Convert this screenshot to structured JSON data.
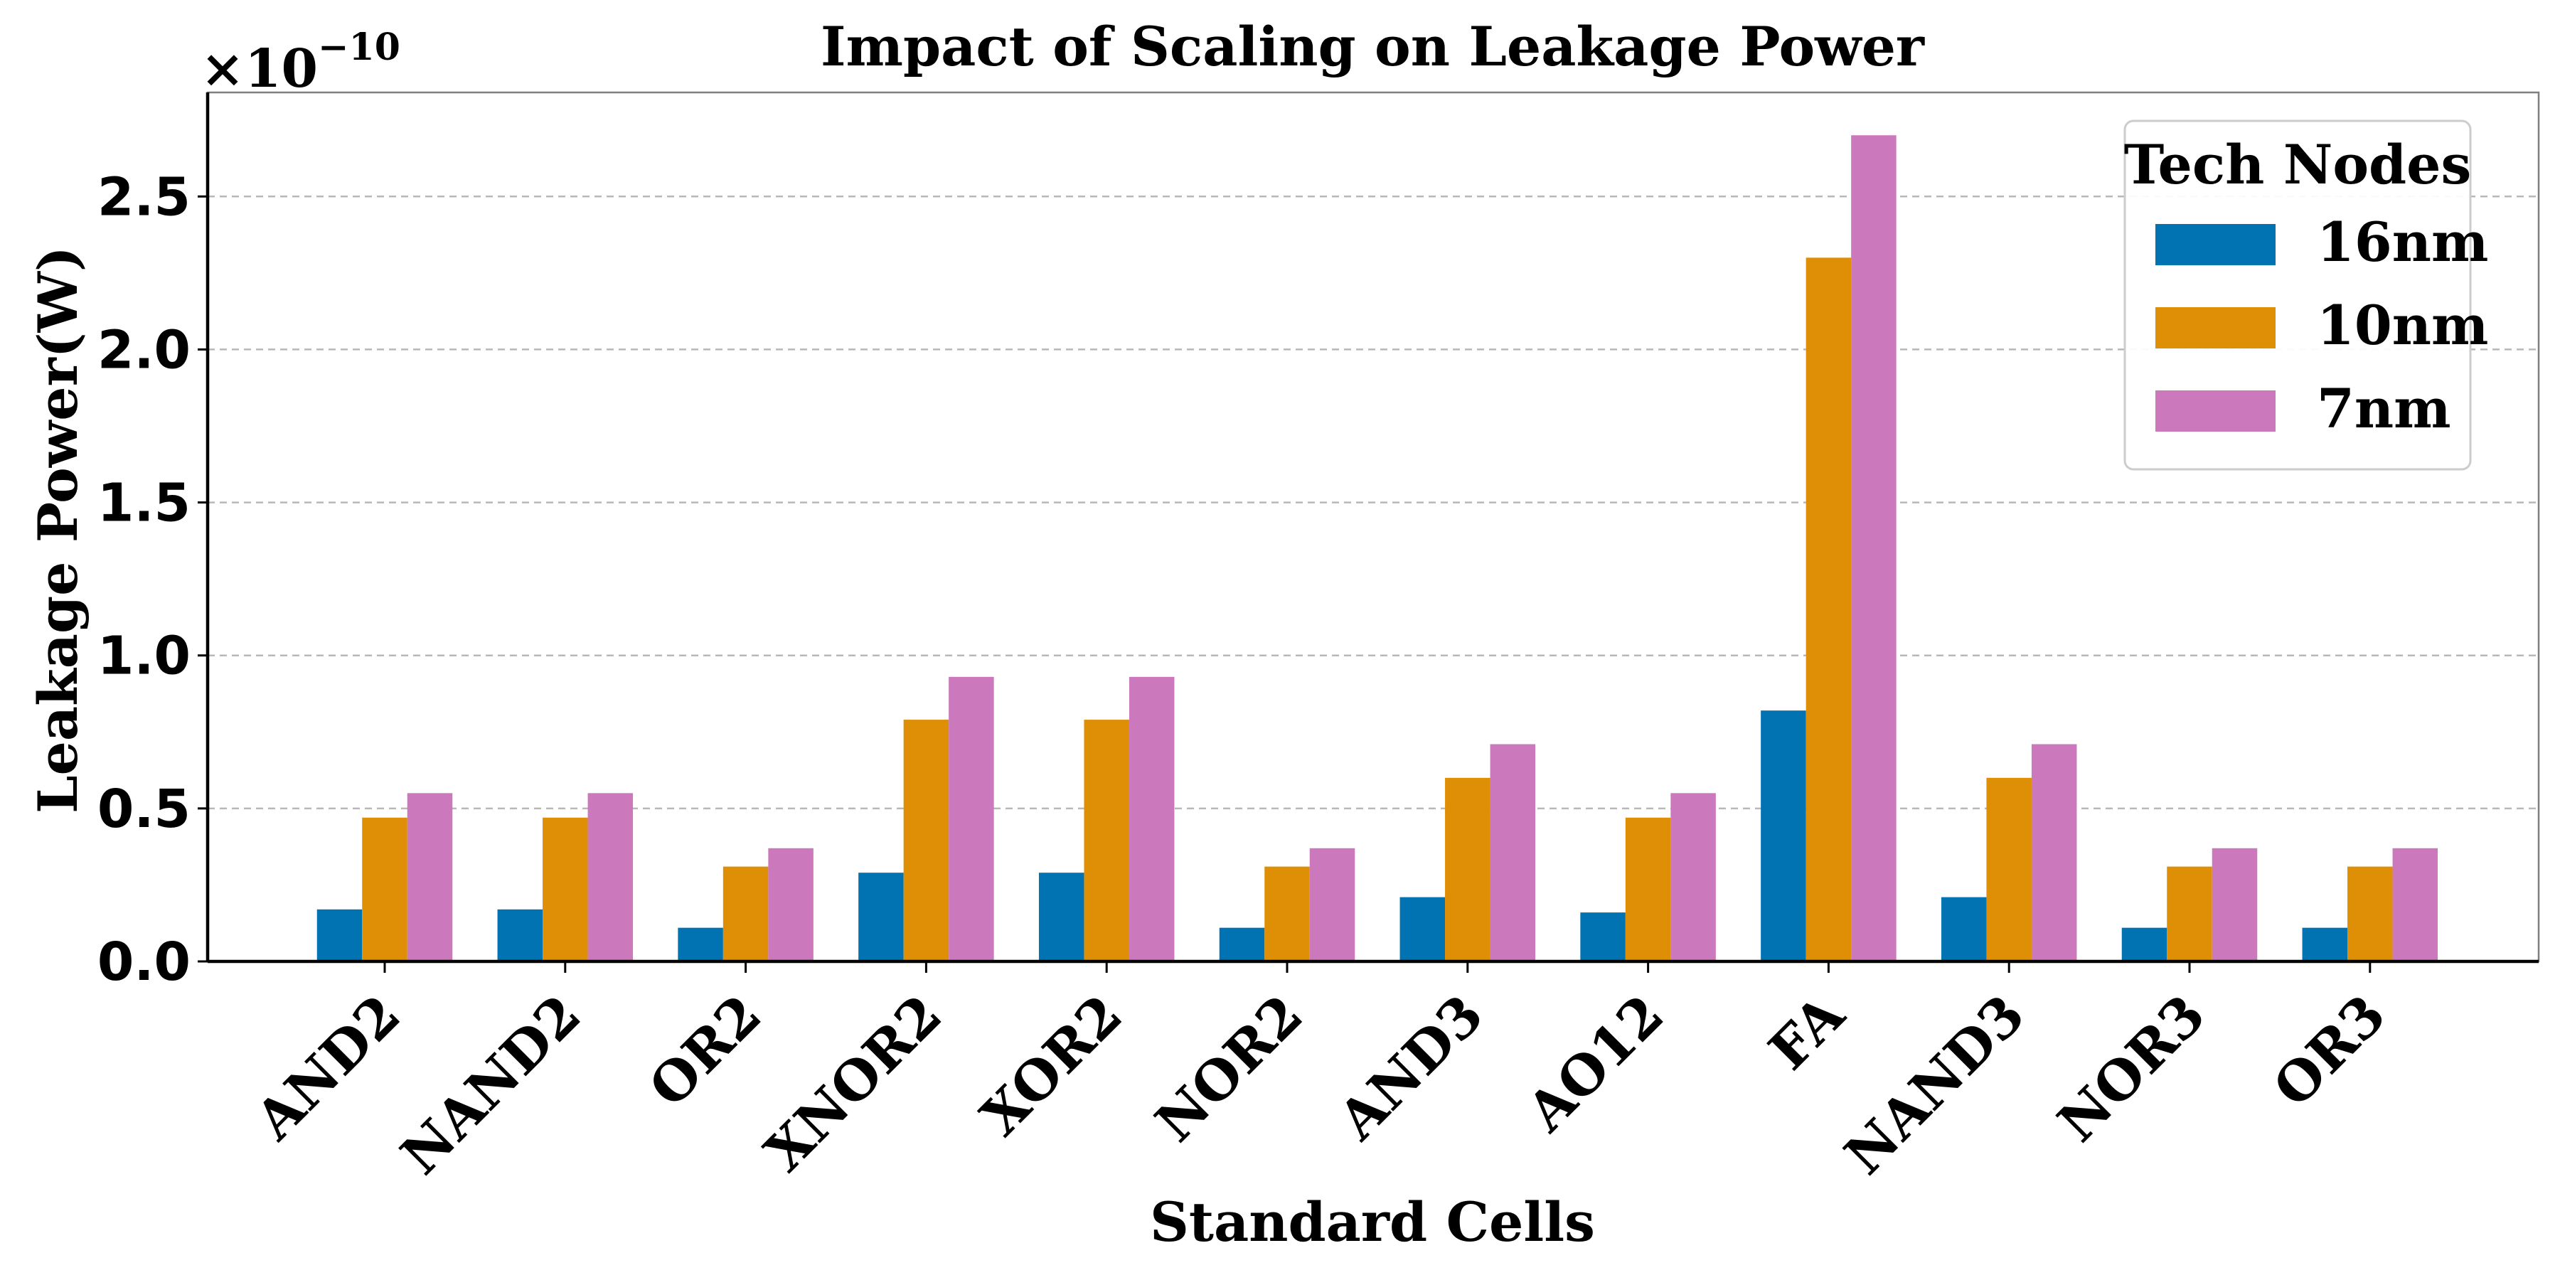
{
  "chart_data": {
    "type": "bar",
    "title": "Impact of Scaling on Leakage Power",
    "xlabel": "Standard Cells",
    "ylabel": "Leakage Power(W)",
    "scale_label": "×10",
    "scale_exponent": "−10",
    "ylim": [
      0,
      2.84
    ],
    "yticks": [
      "0.0",
      "0.5",
      "1.0",
      "1.5",
      "2.0",
      "2.5"
    ],
    "grid": true,
    "legend_position": "top-right",
    "legend_title": "Tech Nodes",
    "categories": [
      "AND2",
      "NAND2",
      "OR2",
      "XNOR2",
      "XOR2",
      "NOR2",
      "AND3",
      "AO12",
      "FA",
      "NAND3",
      "NOR3",
      "OR3"
    ],
    "series": [
      {
        "name": "16nm",
        "color": "#0173b2",
        "values": [
          0.17,
          0.17,
          0.11,
          0.29,
          0.29,
          0.11,
          0.21,
          0.16,
          0.82,
          0.21,
          0.11,
          0.11
        ]
      },
      {
        "name": "10nm",
        "color": "#de8f05",
        "values": [
          0.47,
          0.47,
          0.31,
          0.79,
          0.79,
          0.31,
          0.6,
          0.47,
          2.3,
          0.6,
          0.31,
          0.31
        ]
      },
      {
        "name": "7nm",
        "color": "#cc78bc",
        "values": [
          0.55,
          0.55,
          0.37,
          0.93,
          0.93,
          0.37,
          0.71,
          0.55,
          2.7,
          0.71,
          0.37,
          0.37
        ]
      }
    ]
  }
}
